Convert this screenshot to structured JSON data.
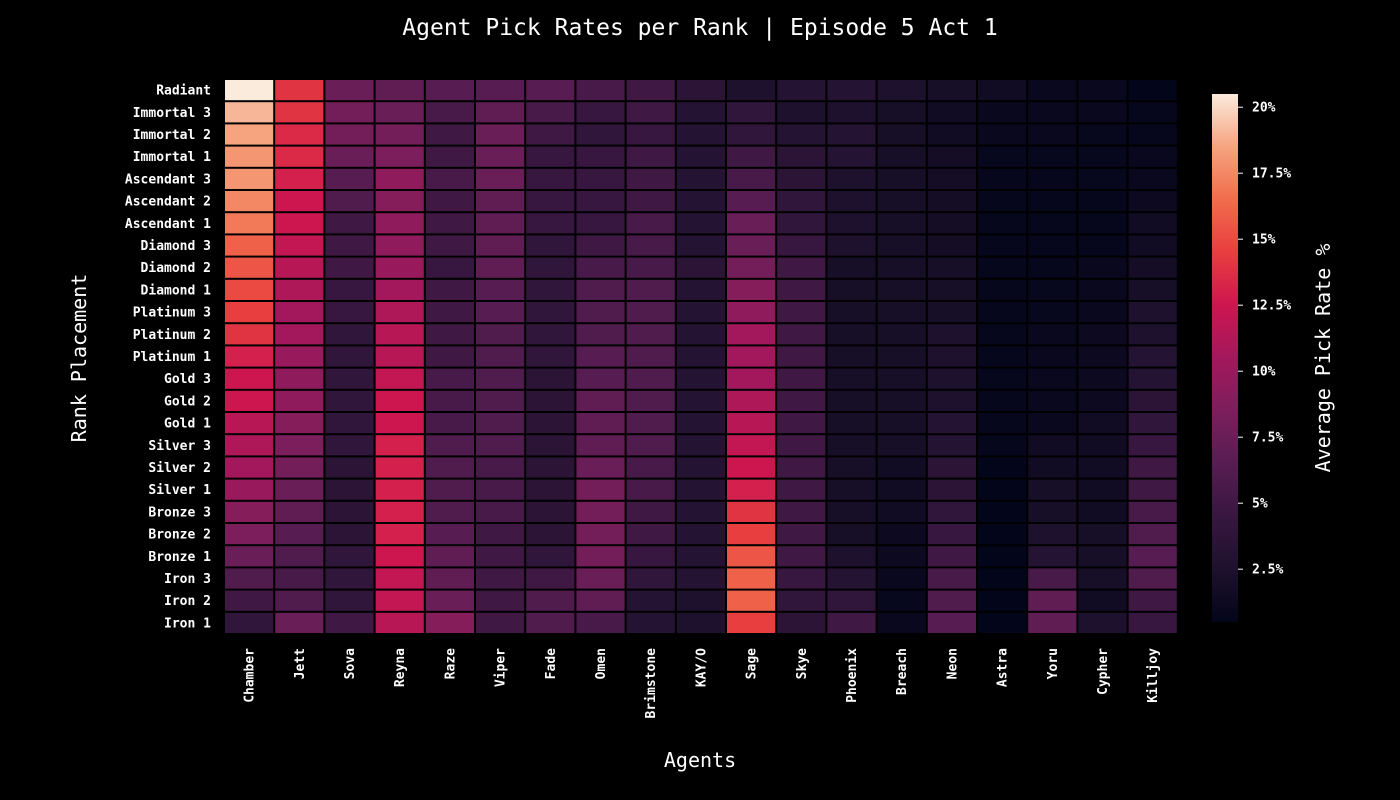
{
  "chart_data": {
    "type": "heatmap",
    "title": "Agent Pick Rates per Rank | Episode 5 Act 1",
    "xlabel": "Agents",
    "ylabel": "Rank Placement",
    "colorbar_label": "Average Pick Rate %",
    "colormap": "rocket",
    "vmin": 0.5,
    "vmax": 20.5,
    "colorbar_ticks": [
      {
        "value": 2.5,
        "label": "2.5%"
      },
      {
        "value": 5,
        "label": "5%"
      },
      {
        "value": 7.5,
        "label": "7.5%"
      },
      {
        "value": 10,
        "label": "10%"
      },
      {
        "value": 12.5,
        "label": "12.5%"
      },
      {
        "value": 15,
        "label": "15%"
      },
      {
        "value": 17.5,
        "label": "17.5%"
      },
      {
        "value": 20,
        "label": "20%"
      }
    ],
    "agents": [
      "Chamber",
      "Jett",
      "Sova",
      "Reyna",
      "Raze",
      "Viper",
      "Fade",
      "Omen",
      "Brimstone",
      "KAY/O",
      "Sage",
      "Skye",
      "Phoenix",
      "Breach",
      "Neon",
      "Astra",
      "Yoru",
      "Cypher",
      "Killjoy"
    ],
    "ranks": [
      "Radiant",
      "Immortal 3",
      "Immortal 2",
      "Immortal 1",
      "Ascendant 3",
      "Ascendant 2",
      "Ascendant 1",
      "Diamond 3",
      "Diamond 2",
      "Diamond 1",
      "Platinum 3",
      "Platinum 2",
      "Platinum 1",
      "Gold 3",
      "Gold 2",
      "Gold 1",
      "Silver 3",
      "Silver 2",
      "Silver 1",
      "Bronze 3",
      "Bronze 2",
      "Bronze 1",
      "Iron 3",
      "Iron 2",
      "Iron 1"
    ],
    "values": [
      [
        20.5,
        14.0,
        7.5,
        7.0,
        6.5,
        6.5,
        6.5,
        5.5,
        5.0,
        3.5,
        2.5,
        3.0,
        3.0,
        2.5,
        2.0,
        1.5,
        1.0,
        1.0,
        0.5
      ],
      [
        19.0,
        14.0,
        8.0,
        7.5,
        5.5,
        7.0,
        5.5,
        4.5,
        5.0,
        3.0,
        4.0,
        2.5,
        2.5,
        2.0,
        1.5,
        1.0,
        1.0,
        1.0,
        0.7
      ],
      [
        18.5,
        13.5,
        8.0,
        8.0,
        5.0,
        7.5,
        5.0,
        4.0,
        4.5,
        3.0,
        4.0,
        3.0,
        3.0,
        2.0,
        1.5,
        1.0,
        1.0,
        0.8,
        0.7
      ],
      [
        18.0,
        13.5,
        7.5,
        8.5,
        5.0,
        7.5,
        4.5,
        4.5,
        5.0,
        3.0,
        5.0,
        3.5,
        3.0,
        2.0,
        1.8,
        0.8,
        0.8,
        0.8,
        1.0
      ],
      [
        18.0,
        13.0,
        6.5,
        9.5,
        5.5,
        7.5,
        4.5,
        4.5,
        5.0,
        3.0,
        5.5,
        3.5,
        2.5,
        2.0,
        1.8,
        0.7,
        0.7,
        0.8,
        1.0
      ],
      [
        17.5,
        12.5,
        6.0,
        9.0,
        5.0,
        7.0,
        4.5,
        4.5,
        5.0,
        3.0,
        6.5,
        4.0,
        2.5,
        2.0,
        1.8,
        0.7,
        0.7,
        0.7,
        1.2
      ],
      [
        17.0,
        12.5,
        5.0,
        9.5,
        5.0,
        7.0,
        4.5,
        4.5,
        5.5,
        3.0,
        7.5,
        4.0,
        2.5,
        2.0,
        1.8,
        0.7,
        0.7,
        0.7,
        1.5
      ],
      [
        16.0,
        12.0,
        5.0,
        9.5,
        5.0,
        7.0,
        4.0,
        5.0,
        5.5,
        3.0,
        7.5,
        4.5,
        2.5,
        2.0,
        1.8,
        0.7,
        0.7,
        0.7,
        1.5
      ],
      [
        15.5,
        11.5,
        5.0,
        10.0,
        4.5,
        7.0,
        4.0,
        5.5,
        5.5,
        3.5,
        8.0,
        5.0,
        2.0,
        2.0,
        2.0,
        0.7,
        0.7,
        1.0,
        1.8
      ],
      [
        15.0,
        11.0,
        4.5,
        10.5,
        5.0,
        6.5,
        4.0,
        6.0,
        6.0,
        3.0,
        9.0,
        5.0,
        2.0,
        2.0,
        2.0,
        0.7,
        0.8,
        1.0,
        2.0
      ],
      [
        14.5,
        10.5,
        4.5,
        11.0,
        5.0,
        6.5,
        4.0,
        6.0,
        6.0,
        3.0,
        9.5,
        5.0,
        2.0,
        2.0,
        2.0,
        0.7,
        0.8,
        1.0,
        2.5
      ],
      [
        14.0,
        10.5,
        4.0,
        11.5,
        5.0,
        6.0,
        4.0,
        6.0,
        6.0,
        3.0,
        10.5,
        5.0,
        2.0,
        2.0,
        2.5,
        0.7,
        1.0,
        1.2,
        2.5
      ],
      [
        13.0,
        10.0,
        4.0,
        11.5,
        5.0,
        6.0,
        4.0,
        6.5,
        6.0,
        3.0,
        10.5,
        5.0,
        2.0,
        2.0,
        2.5,
        0.7,
        1.0,
        1.2,
        3.0
      ],
      [
        12.5,
        9.5,
        4.0,
        12.0,
        5.5,
        6.0,
        3.5,
        6.5,
        6.0,
        3.0,
        10.5,
        5.0,
        2.0,
        2.0,
        2.5,
        0.7,
        1.0,
        1.2,
        3.0
      ],
      [
        12.5,
        9.5,
        4.0,
        12.5,
        5.5,
        6.0,
        3.5,
        7.0,
        6.0,
        3.0,
        11.0,
        5.0,
        2.0,
        2.0,
        2.5,
        0.7,
        1.0,
        1.2,
        3.5
      ],
      [
        11.5,
        9.0,
        4.0,
        12.5,
        5.5,
        6.0,
        3.5,
        7.0,
        6.0,
        3.0,
        11.5,
        5.0,
        2.0,
        2.0,
        3.0,
        0.7,
        1.0,
        1.5,
        4.0
      ],
      [
        11.0,
        8.5,
        4.0,
        13.0,
        6.0,
        6.0,
        3.5,
        7.0,
        6.0,
        3.0,
        12.0,
        5.0,
        2.0,
        2.0,
        3.0,
        0.7,
        1.5,
        1.5,
        4.5
      ],
      [
        10.5,
        8.0,
        3.5,
        13.0,
        6.0,
        5.5,
        3.5,
        7.5,
        5.5,
        3.0,
        12.5,
        5.0,
        2.0,
        1.5,
        3.5,
        0.5,
        1.5,
        1.5,
        5.0
      ],
      [
        10.0,
        7.5,
        3.5,
        13.0,
        6.0,
        5.5,
        3.5,
        8.0,
        5.5,
        3.0,
        13.0,
        5.0,
        2.0,
        1.5,
        3.5,
        0.5,
        2.0,
        1.5,
        5.0
      ],
      [
        9.0,
        7.0,
        3.5,
        13.0,
        6.0,
        5.5,
        3.5,
        8.0,
        5.0,
        3.0,
        14.0,
        5.0,
        2.0,
        1.5,
        4.0,
        0.5,
        2.0,
        1.5,
        5.5
      ],
      [
        8.5,
        6.5,
        3.5,
        13.0,
        6.5,
        5.0,
        3.5,
        8.0,
        5.0,
        3.0,
        14.5,
        5.0,
        2.0,
        1.2,
        4.5,
        0.5,
        2.5,
        2.0,
        6.0
      ],
      [
        7.5,
        6.0,
        4.0,
        12.5,
        7.0,
        5.0,
        4.0,
        8.0,
        4.5,
        3.0,
        15.5,
        5.0,
        2.5,
        1.2,
        5.0,
        0.5,
        3.0,
        2.0,
        6.5
      ],
      [
        6.0,
        5.5,
        4.0,
        12.0,
        7.0,
        5.0,
        5.0,
        7.5,
        4.0,
        3.0,
        16.0,
        4.5,
        3.0,
        1.0,
        5.5,
        0.5,
        5.5,
        2.0,
        6.0
      ],
      [
        5.0,
        6.0,
        4.0,
        12.0,
        7.5,
        5.0,
        6.0,
        7.0,
        3.0,
        2.5,
        16.0,
        4.0,
        4.0,
        0.8,
        6.0,
        0.5,
        7.0,
        1.5,
        5.0
      ],
      [
        4.0,
        7.5,
        5.0,
        11.5,
        9.0,
        5.0,
        6.0,
        5.5,
        3.0,
        2.5,
        14.5,
        3.5,
        5.0,
        1.0,
        6.5,
        0.5,
        7.0,
        2.5,
        4.5
      ]
    ]
  }
}
